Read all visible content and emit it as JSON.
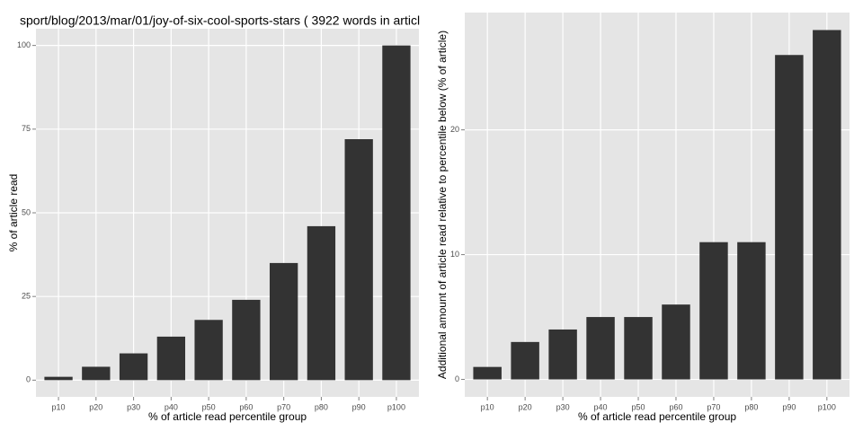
{
  "chart_data": [
    {
      "type": "bar",
      "title": "sport/blog/2013/mar/01/joy-of-six-cool-sports-stars ( 3922 words in articl",
      "x_label": "% of article read percentile group",
      "y_label": "% of article read",
      "categories": [
        "p10",
        "p20",
        "p30",
        "p40",
        "p50",
        "p60",
        "p70",
        "p80",
        "p90",
        "p100"
      ],
      "values": [
        1,
        4,
        8,
        13,
        18,
        24,
        35,
        46,
        72,
        100
      ],
      "color": "#333333",
      "ylim": [
        -5,
        105
      ],
      "yticks": [
        0,
        25,
        50,
        75,
        100
      ],
      "grid": true
    },
    {
      "type": "bar",
      "x_label": "% of article read percentile group",
      "y_label": "Additional amount of article read relative to percentile below (% of article)",
      "categories": [
        "p10",
        "p20",
        "p30",
        "p40",
        "p50",
        "p60",
        "p70",
        "p80",
        "p90",
        "p100"
      ],
      "values": [
        1,
        3,
        4,
        5,
        5,
        6,
        11,
        11,
        26,
        28
      ],
      "color": "#333333",
      "ylim": [
        -1.4,
        29.4
      ],
      "yticks": [
        0,
        10,
        20
      ],
      "grid": true
    }
  ]
}
